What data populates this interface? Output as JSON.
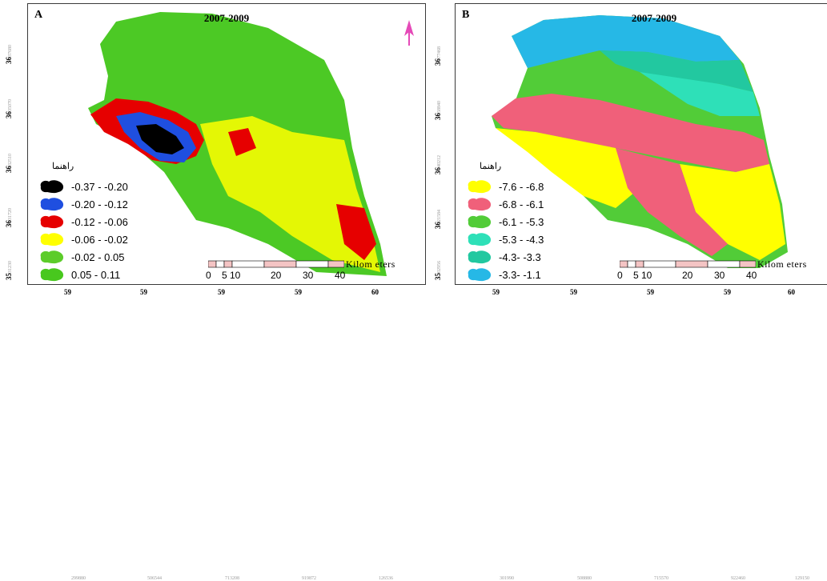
{
  "panels": [
    {
      "label": "A",
      "title": "2007-2009",
      "legend_title": "راهنما",
      "legend": [
        {
          "label": "-0.37 - -0.20",
          "color": "#000000"
        },
        {
          "label": "-0.20 - -0.12",
          "color": "#1f4fe0"
        },
        {
          "label": "-0.12 - -0.06",
          "color": "#e60000"
        },
        {
          "label": "-0.06 - -0.02",
          "color": "#ffff00"
        },
        {
          "label": "-0.02 - 0.05",
          "color": "#5ccc2a"
        },
        {
          "label": "0.05 - 0.11",
          "color": "#48c81e"
        }
      ],
      "scale_unit": "Kilom eters",
      "scale_ticks": [
        "0",
        "5",
        "10",
        "20",
        "30",
        "40"
      ],
      "y_ticks": [
        {
          "big": "36",
          "small": "37680"
        },
        {
          "big": "36",
          "small": "35070"
        },
        {
          "big": "36",
          "small": "32510"
        },
        {
          "big": "36",
          "small": "31720"
        },
        {
          "big": "35",
          "small": "31230"
        }
      ],
      "x_ticks": [
        {
          "big": "59",
          "small": "299880"
        },
        {
          "big": "59",
          "small": "506544"
        },
        {
          "big": "59",
          "small": "713208"
        },
        {
          "big": "59",
          "small": "919872"
        },
        {
          "big": "60",
          "small": "126536"
        }
      ]
    },
    {
      "label": "B",
      "title": "2007-2009",
      "legend_title": "راهنما",
      "legend": [
        {
          "label": "-7.6 - -6.8",
          "color": "#ffff00"
        },
        {
          "label": "-6.8 - -6.1",
          "color": "#f0607a"
        },
        {
          "label": "-6.1 - -5.3",
          "color": "#52cc38"
        },
        {
          "label": "-5.3 - -4.3",
          "color": "#2ee0b8"
        },
        {
          "label": "-4.3- -3.3",
          "color": "#22c8a0"
        },
        {
          "label": "-3.3- -1.1",
          "color": "#26b8e6"
        }
      ],
      "scale_unit": "Kilom eters",
      "scale_ticks": [
        "0",
        "5",
        "10",
        "20",
        "30",
        "40"
      ],
      "y_ticks": [
        {
          "big": "36",
          "small": "77468"
        },
        {
          "big": "36",
          "small": "58840"
        },
        {
          "big": "36",
          "small": "40212"
        },
        {
          "big": "36",
          "small": "21584"
        },
        {
          "big": "35",
          "small": "02956"
        }
      ],
      "x_ticks": [
        {
          "big": "59",
          "small": "301990"
        },
        {
          "big": "59",
          "small": "508880"
        },
        {
          "big": "59",
          "small": "715570"
        },
        {
          "big": "59",
          "small": "922460"
        },
        {
          "big": "60",
          "small": "129150"
        }
      ]
    }
  ]
}
